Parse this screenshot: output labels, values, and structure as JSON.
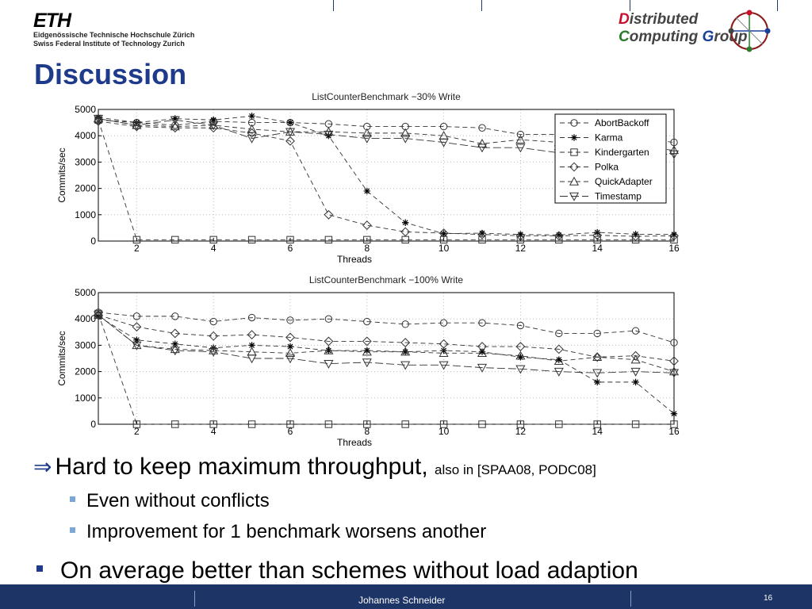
{
  "header": {
    "eth_mark": "ETH",
    "eth_line1": "Eidgenössische Technische Hochschule Zürich",
    "eth_line2": "Swiss Federal Institute of Technology Zurich",
    "dcg_line1_initial": "D",
    "dcg_line1_rest": "istributed",
    "dcg_line2_c": "C",
    "dcg_line2_mid": "omputing ",
    "dcg_line2_g": "G",
    "dcg_line2_rest": "roup"
  },
  "slide": {
    "title": "Discussion"
  },
  "bullets": {
    "arrow": "⇒",
    "main": "Hard to keep maximum throughput,",
    "main_small": "also in [SPAA08, PODC08]",
    "sub1": "Even without conflicts",
    "sub2": "Improvement for 1 benchmark worsens another",
    "second": "On average better than schemes without load adaption"
  },
  "footer": {
    "author": "Johannes Schneider",
    "page": "16"
  },
  "chart_data": [
    {
      "type": "line",
      "title": "ListCounterBenchmark −30% Write",
      "xlabel": "Threads",
      "ylabel": "Commits/sec",
      "xlim": [
        1,
        16
      ],
      "ylim": [
        0,
        5000
      ],
      "xticks": [
        2,
        4,
        6,
        8,
        10,
        12,
        14,
        16
      ],
      "yticks": [
        0,
        1000,
        2000,
        3000,
        4000,
        5000
      ],
      "grid": true,
      "legend": "top-right",
      "x": [
        1,
        2,
        3,
        4,
        5,
        6,
        7,
        8,
        9,
        10,
        11,
        12,
        13,
        14,
        15,
        16
      ],
      "series": [
        {
          "name": "AbortBackoff",
          "marker": "circle",
          "dash": "6,4",
          "values": [
            4600,
            4500,
            4400,
            4550,
            4500,
            4500,
            4450,
            4350,
            4350,
            4350,
            4300,
            4050,
            4050,
            3950,
            3900,
            3750
          ]
        },
        {
          "name": "Karma",
          "marker": "star",
          "dash": "6,4",
          "values": [
            4700,
            4500,
            4650,
            4600,
            4750,
            4500,
            4000,
            1900,
            700,
            280,
            300,
            250,
            230,
            330,
            260,
            250
          ]
        },
        {
          "name": "Kindergarten",
          "marker": "square",
          "dash": "6,4",
          "values": [
            4600,
            50,
            50,
            50,
            50,
            50,
            50,
            50,
            50,
            50,
            50,
            50,
            50,
            50,
            50,
            50
          ]
        },
        {
          "name": "Polka",
          "marker": "diamond",
          "dash": "6,4",
          "values": [
            4550,
            4350,
            4300,
            4300,
            4100,
            3800,
            1000,
            600,
            350,
            300,
            250,
            200,
            200,
            220,
            180,
            200
          ]
        },
        {
          "name": "QuickAdapter",
          "marker": "triangle-up",
          "dash": "6,4",
          "values": [
            4650,
            4400,
            4350,
            4400,
            4250,
            4150,
            4150,
            4100,
            4100,
            4000,
            3700,
            3850,
            3750,
            3750,
            3600,
            3450
          ]
        },
        {
          "name": "Timestamp",
          "marker": "triangle-down",
          "dash": "10,4",
          "values": [
            4650,
            4400,
            4600,
            4400,
            3900,
            4150,
            4050,
            3900,
            3900,
            3750,
            3550,
            3550,
            3350,
            3400,
            3300,
            3300
          ]
        }
      ]
    },
    {
      "type": "line",
      "title": "ListCounterBenchmark −100% Write",
      "xlabel": "Threads",
      "ylabel": "Commits/sec",
      "xlim": [
        1,
        16
      ],
      "ylim": [
        0,
        5000
      ],
      "xticks": [
        2,
        4,
        6,
        8,
        10,
        12,
        14,
        16
      ],
      "yticks": [
        0,
        1000,
        2000,
        3000,
        4000,
        5000
      ],
      "grid": true,
      "legend": "none",
      "x": [
        1,
        2,
        3,
        4,
        5,
        6,
        7,
        8,
        9,
        10,
        11,
        12,
        13,
        14,
        15,
        16
      ],
      "series": [
        {
          "name": "AbortBackoff",
          "marker": "circle",
          "dash": "6,4",
          "values": [
            4250,
            4100,
            4100,
            3900,
            4050,
            3950,
            4000,
            3900,
            3800,
            3850,
            3850,
            3750,
            3450,
            3450,
            3550,
            3100
          ]
        },
        {
          "name": "Karma",
          "marker": "star",
          "dash": "6,4",
          "values": [
            4100,
            3200,
            3050,
            2900,
            3000,
            2950,
            2800,
            2800,
            2750,
            2800,
            2750,
            2550,
            2450,
            1600,
            1600,
            400
          ]
        },
        {
          "name": "Kindergarten",
          "marker": "square",
          "dash": "6,4",
          "values": [
            4200,
            0,
            0,
            0,
            0,
            0,
            0,
            0,
            0,
            0,
            0,
            0,
            0,
            0,
            0,
            0
          ]
        },
        {
          "name": "Polka",
          "marker": "diamond",
          "dash": "6,4",
          "values": [
            4150,
            3700,
            3450,
            3350,
            3400,
            3300,
            3150,
            3150,
            3100,
            3050,
            2950,
            2950,
            2850,
            2550,
            2600,
            2400
          ]
        },
        {
          "name": "QuickAdapter",
          "marker": "triangle-up",
          "dash": "6,4",
          "values": [
            4150,
            3000,
            2850,
            2800,
            2750,
            2700,
            2800,
            2750,
            2750,
            2700,
            2700,
            2600,
            2400,
            2550,
            2450,
            2000
          ]
        },
        {
          "name": "Timestamp",
          "marker": "triangle-down",
          "dash": "10,4",
          "values": [
            4150,
            3000,
            2800,
            2750,
            2500,
            2500,
            2300,
            2350,
            2250,
            2250,
            2150,
            2100,
            2000,
            1950,
            2000,
            1950
          ]
        }
      ]
    }
  ]
}
